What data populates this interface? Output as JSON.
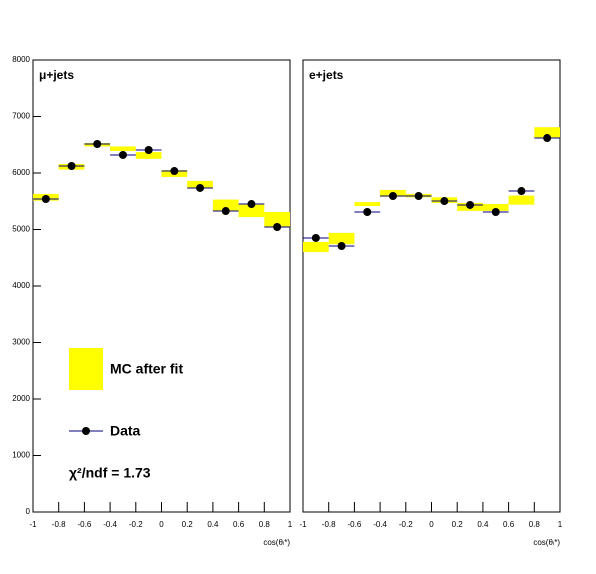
{
  "chart_data": [
    {
      "type": "histogram",
      "title": "μ+jets",
      "xlabel": "cos(θₗ*)",
      "bins": [
        -1,
        -0.8,
        -0.6,
        -0.4,
        -0.2,
        0,
        0.2,
        0.4,
        0.6,
        0.8,
        1
      ],
      "xlim": [
        -1,
        1
      ],
      "xticks": [
        -1,
        -0.8,
        -0.6,
        -0.4,
        -0.2,
        0,
        0.2,
        0.4,
        0.6,
        0.8,
        1
      ],
      "ylim": [
        0,
        8000
      ],
      "yticks": [
        0,
        1000,
        2000,
        3000,
        4000,
        5000,
        6000,
        7000,
        8000
      ],
      "legend": true,
      "annotation": "χ²/ndf = 1.73",
      "series": [
        {
          "name": "MC after fit",
          "color": "#ffff00",
          "style": "band",
          "values": [
            5570,
            6110,
            6500,
            6430,
            6310,
            5990,
            5800,
            5430,
            5330,
            5180
          ],
          "errors": [
            60,
            50,
            30,
            40,
            60,
            60,
            60,
            100,
            110,
            130
          ]
        },
        {
          "name": "Data",
          "color": "#000000",
          "line_color": "#000080",
          "style": "points",
          "values": [
            5540,
            6124,
            6513,
            6319,
            6407,
            6035,
            5735,
            5327,
            5451,
            5044
          ],
          "errors": [
            40,
            40,
            40,
            40,
            40,
            40,
            40,
            40,
            40,
            40
          ]
        }
      ]
    },
    {
      "type": "histogram",
      "title": "e+jets",
      "xlabel": "cos(θₗ*)",
      "bins": [
        -1,
        -0.8,
        -0.6,
        -0.4,
        -0.2,
        0,
        0.2,
        0.4,
        0.6,
        0.8,
        1
      ],
      "xlim": [
        -1,
        1
      ],
      "xticks": [
        -1,
        -0.8,
        -0.6,
        -0.4,
        -0.2,
        0,
        0.2,
        0.4,
        0.6,
        0.8,
        1
      ],
      "ylim": [
        0,
        8000
      ],
      "legend": false,
      "series": [
        {
          "name": "MC after fit",
          "color": "#ffff00",
          "style": "band",
          "values": [
            4690,
            4840,
            5450,
            5640,
            5600,
            5520,
            5400,
            5390,
            5520,
            6720
          ],
          "errors": [
            90,
            100,
            35,
            60,
            30,
            50,
            70,
            60,
            80,
            90
          ]
        },
        {
          "name": "Data",
          "color": "#000000",
          "line_color": "#000080",
          "style": "points",
          "values": [
            4850,
            4708,
            5310,
            5593,
            5593,
            5504,
            5434,
            5310,
            5681,
            6619
          ],
          "errors": [
            40,
            40,
            40,
            40,
            40,
            40,
            40,
            40,
            40,
            40
          ]
        }
      ]
    }
  ]
}
